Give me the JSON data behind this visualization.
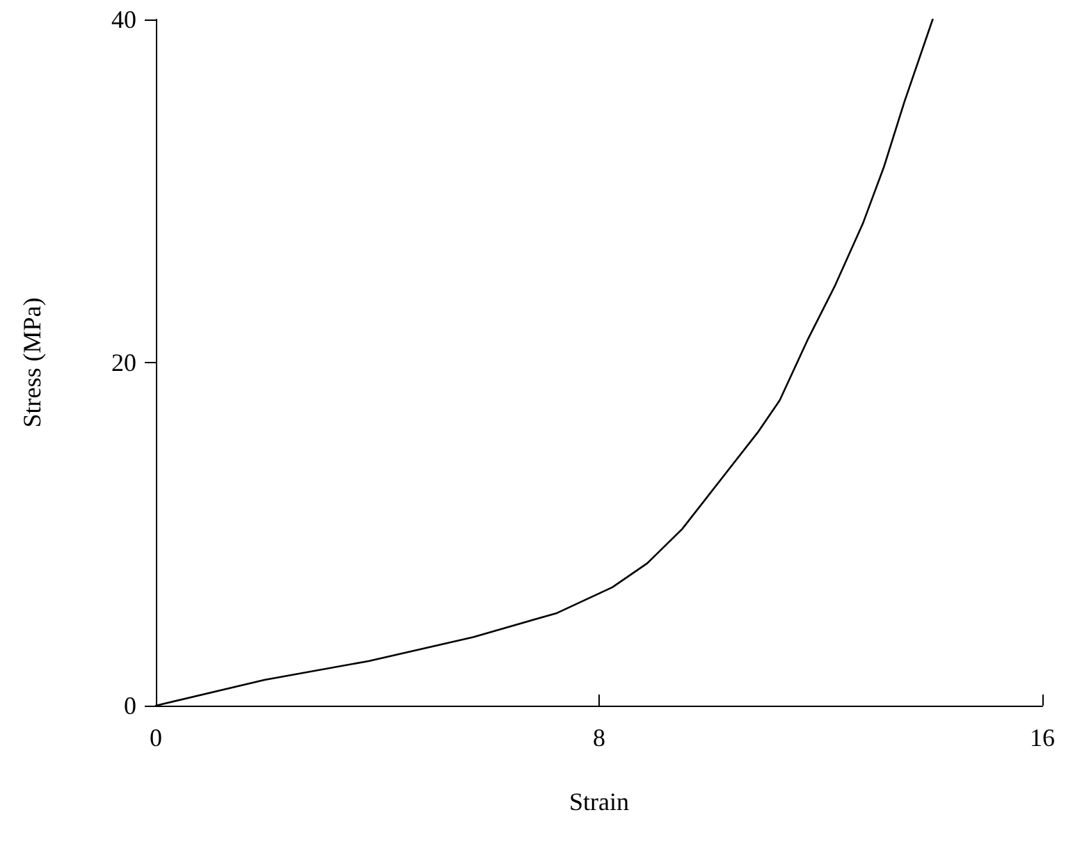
{
  "chart_data": {
    "type": "line",
    "xlabel": "Strain",
    "ylabel": "Stress (MPa)",
    "series": [
      {
        "color": "#000000",
        "x": [
          0,
          1.96,
          3.84,
          5.73,
          7.24,
          8.24,
          8.87,
          9.5,
          10.25,
          10.88,
          11.26,
          11.76,
          12.26,
          12.76,
          13.14,
          13.51,
          14.02
        ],
        "values": [
          0,
          1.5,
          2.6,
          4,
          5.4,
          6.9,
          8.3,
          10.3,
          13.4,
          16,
          17.8,
          21.3,
          24.5,
          28.1,
          31.4,
          35.2,
          40
        ]
      }
    ],
    "xlim": [
      0,
      16
    ],
    "xticks": [
      0,
      8,
      16
    ],
    "ylim": [
      0,
      40
    ],
    "yticks": [
      0,
      20,
      40
    ],
    "grid": false,
    "marker": "none",
    "line_style": "solid"
  }
}
